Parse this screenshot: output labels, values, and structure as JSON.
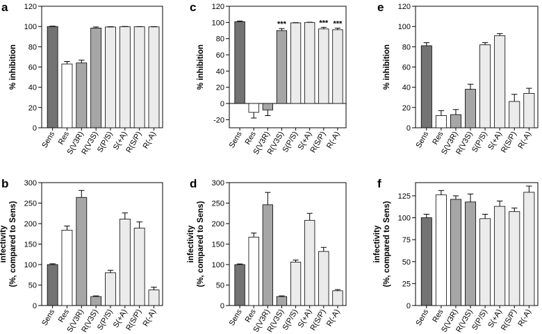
{
  "colors": {
    "dark": "#737373",
    "white": "#ffffff",
    "mid": "#a6a6a6",
    "light": "#ebebeb"
  },
  "chart_data": [
    {
      "panel": "a",
      "type": "bar",
      "ylabel": "% inhibition",
      "ylim": [
        0,
        120
      ],
      "yticks": [
        0,
        20,
        40,
        60,
        80,
        100,
        120
      ],
      "categories": [
        "Sens",
        "Res",
        "S(V3R)",
        "R(V3S)",
        "S(P/S)",
        "S(+A)",
        "R(S/P)",
        "R(-A)"
      ],
      "values": [
        100,
        63,
        64,
        98.5,
        99.5,
        99.8,
        99.7,
        99.6
      ],
      "errors": [
        0.4,
        2.5,
        2.8,
        1,
        0.4,
        0.2,
        0.2,
        0.3
      ],
      "fills": [
        "dark",
        "white",
        "mid",
        "mid",
        "light",
        "light",
        "light",
        "light"
      ],
      "annotations": [
        "",
        "",
        "",
        "",
        "",
        "",
        "",
        ""
      ]
    },
    {
      "panel": "b",
      "type": "bar",
      "ylabel": "infectivity\n(%, compared to Sens)",
      "ylim": [
        0,
        300
      ],
      "yticks": [
        0,
        50,
        100,
        150,
        200,
        250,
        300
      ],
      "categories": [
        "Sens",
        "Res",
        "S(V3R)",
        "R(V3S)",
        "S(P/S)",
        "S(+A)",
        "R(S/P)",
        "R(-A)"
      ],
      "values": [
        100,
        184,
        264,
        22,
        80,
        211,
        189,
        38
      ],
      "errors": [
        2,
        10,
        17,
        1.5,
        6,
        15,
        15,
        7
      ],
      "fills": [
        "dark",
        "white",
        "mid",
        "mid",
        "light",
        "light",
        "light",
        "light"
      ],
      "annotations": [
        "",
        "",
        "",
        "",
        "",
        "",
        "",
        ""
      ]
    },
    {
      "panel": "c",
      "type": "bar",
      "ylabel": "% inhibition",
      "ylim": [
        -30,
        120
      ],
      "yticks": [
        -20,
        0,
        20,
        40,
        60,
        80,
        100,
        120
      ],
      "categories": [
        "Sens",
        "Res",
        "S(V3R)",
        "R(V3S)",
        "S(P/S)",
        "S(+A)",
        "R(S/P)",
        "R(-A)"
      ],
      "values": [
        101,
        -11,
        -8,
        90,
        99.5,
        100,
        92,
        91
      ],
      "errors": [
        0.8,
        7,
        7,
        2.5,
        0.3,
        0.3,
        2,
        2
      ],
      "fills": [
        "dark",
        "white",
        "mid",
        "mid",
        "light",
        "light",
        "light",
        "light"
      ],
      "annotations": [
        "",
        "",
        "",
        "***",
        "",
        "",
        "***",
        "***"
      ]
    },
    {
      "panel": "d",
      "type": "bar",
      "ylabel": "infectivity\n(%, compared to Sens)",
      "ylim": [
        0,
        300
      ],
      "yticks": [
        0,
        50,
        100,
        150,
        200,
        250,
        300
      ],
      "categories": [
        "Sens",
        "Res",
        "S(V3R)",
        "R(V3S)",
        "S(P/S)",
        "S(+A)",
        "R(S/P)",
        "R(-A)"
      ],
      "values": [
        100,
        167,
        246,
        22,
        106,
        208,
        132,
        36
      ],
      "errors": [
        1.5,
        10,
        30,
        1.5,
        5,
        17,
        10,
        3
      ],
      "fills": [
        "dark",
        "white",
        "mid",
        "mid",
        "light",
        "light",
        "light",
        "light"
      ],
      "annotations": [
        "",
        "",
        "",
        "",
        "",
        "",
        "",
        ""
      ]
    },
    {
      "panel": "e",
      "type": "bar",
      "ylabel": "% inhibition",
      "ylim": [
        0,
        120
      ],
      "yticks": [
        0,
        20,
        40,
        60,
        80,
        100,
        120
      ],
      "categories": [
        "Sens",
        "Res",
        "S(V3R)",
        "R(V3S)",
        "S(P/S)",
        "S(+A)",
        "R(S/P)",
        "R(-A)"
      ],
      "values": [
        81,
        12,
        13,
        38,
        82,
        91,
        26,
        34
      ],
      "errors": [
        3,
        5,
        5,
        5,
        2,
        2,
        7,
        5
      ],
      "fills": [
        "dark",
        "white",
        "mid",
        "mid",
        "light",
        "light",
        "light",
        "light"
      ],
      "annotations": [
        "",
        "",
        "",
        "",
        "",
        "",
        "",
        ""
      ]
    },
    {
      "panel": "f",
      "type": "bar",
      "ylabel": "infectivity\n(%, compared to Sens)",
      "ylim": [
        0,
        140
      ],
      "yticks": [
        0,
        25,
        50,
        75,
        100,
        125
      ],
      "categories": [
        "Sens",
        "Res",
        "S(V3R)",
        "R(V3S)",
        "S(P/S)",
        "S(+A)",
        "R(S/P)",
        "R(-A)"
      ],
      "values": [
        100,
        126,
        121,
        118,
        99,
        113,
        107,
        129
      ],
      "errors": [
        4,
        5,
        4,
        9,
        5,
        6,
        4,
        7
      ],
      "fills": [
        "dark",
        "white",
        "mid",
        "mid",
        "light",
        "light",
        "light",
        "light"
      ],
      "annotations": [
        "",
        "",
        "",
        "",
        "",
        "",
        "",
        ""
      ]
    }
  ]
}
